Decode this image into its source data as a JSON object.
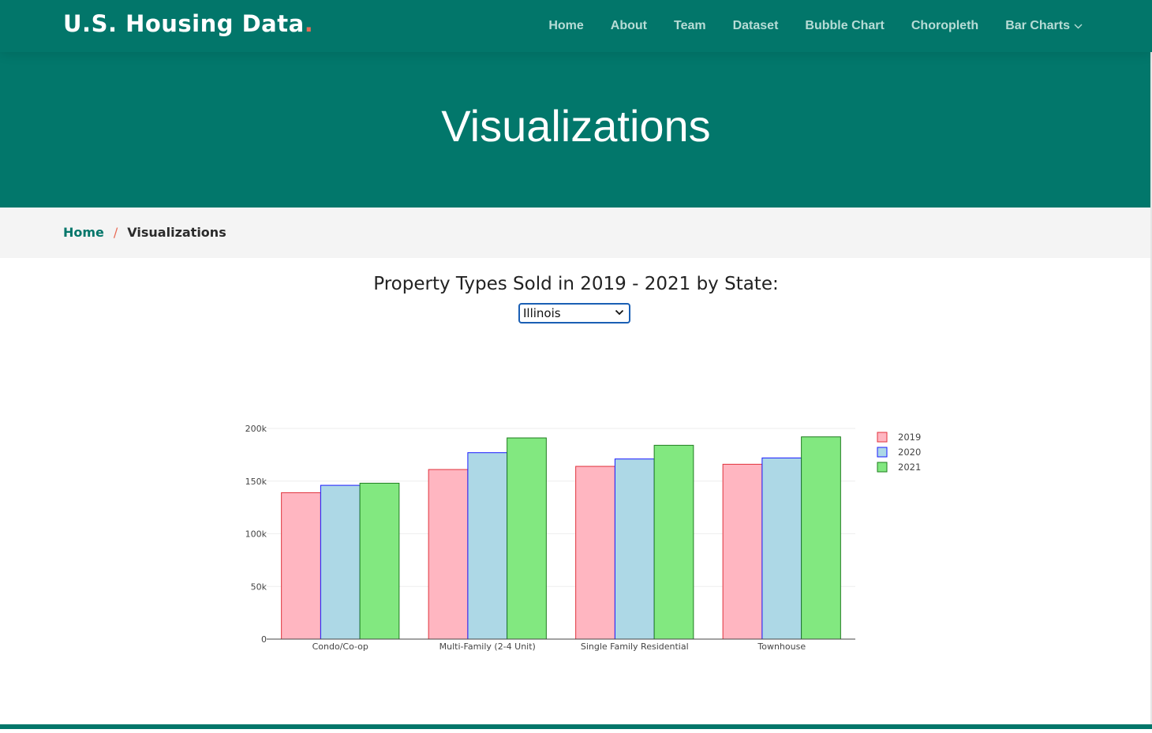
{
  "header": {
    "logo_text": "U.S. Housing Data",
    "logo_dot": ".",
    "nav": [
      {
        "label": "Home"
      },
      {
        "label": "About"
      },
      {
        "label": "Team"
      },
      {
        "label": "Dataset"
      },
      {
        "label": "Bubble Chart"
      },
      {
        "label": "Choropleth"
      },
      {
        "label": "Bar Charts",
        "icon": "chevron-down-icon"
      }
    ]
  },
  "hero": {
    "title": "Visualizations"
  },
  "breadcrumb": {
    "home": "Home",
    "separator": "/",
    "current": "Visualizations"
  },
  "section": {
    "title": "Property Types Sold in 2019 - 2021 by State:",
    "state_select": {
      "value": "Illinois"
    }
  },
  "colors": {
    "brand": "#02766a",
    "accent": "#e96b56",
    "series_2019_fill": "#ffb6c1",
    "series_2019_line": "#e0323c",
    "series_2020_fill": "#add8e6",
    "series_2020_line": "#1a1aff",
    "series_2021_fill": "#82e880",
    "series_2021_line": "#1e7d1e"
  },
  "chart_data": {
    "type": "bar",
    "categories": [
      "Condo/Co-op",
      "Multi-Family (2-4 Unit)",
      "Single Family Residential",
      "Townhouse"
    ],
    "series": [
      {
        "name": "2019",
        "values": [
          139000,
          161000,
          164000,
          166000
        ]
      },
      {
        "name": "2020",
        "values": [
          146000,
          177000,
          171000,
          172000
        ]
      },
      {
        "name": "2021",
        "values": [
          148000,
          191000,
          184000,
          192000
        ]
      }
    ],
    "ylim": [
      0,
      200000
    ],
    "yticks": [
      0,
      50000,
      100000,
      150000,
      200000
    ],
    "ytick_labels": [
      "0",
      "50k",
      "100k",
      "150k",
      "200k"
    ],
    "grid": true,
    "legend_position": "top-right"
  }
}
